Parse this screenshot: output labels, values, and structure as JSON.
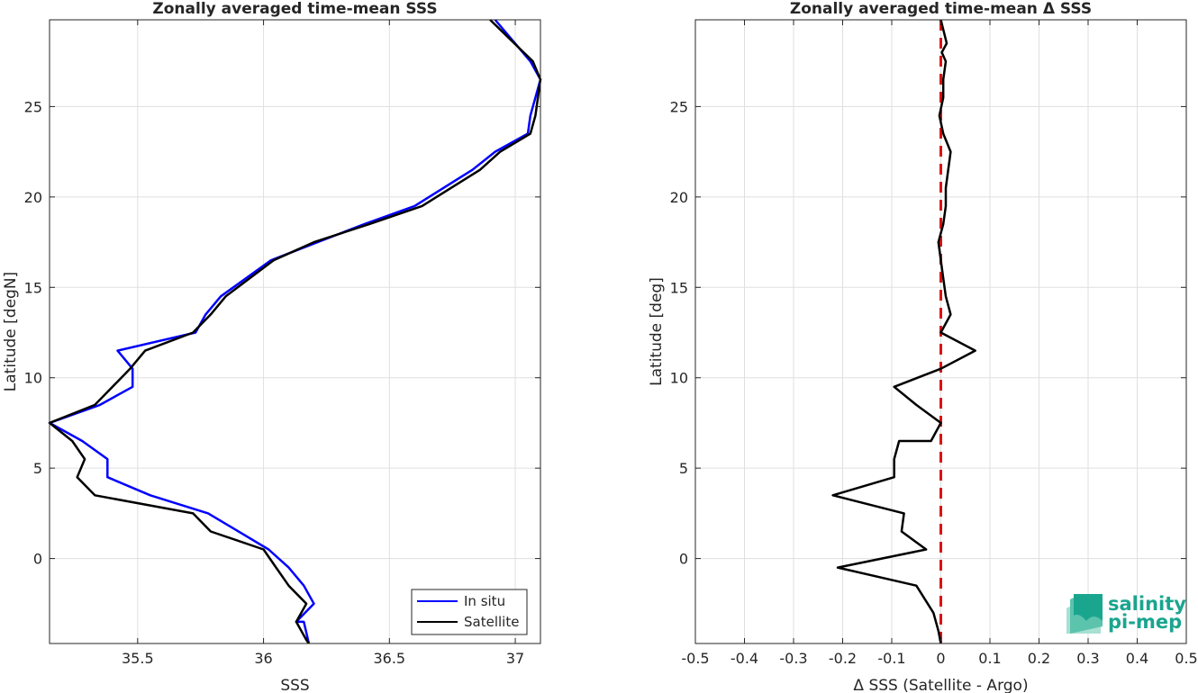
{
  "chart_data": [
    {
      "type": "line",
      "title": "Zonally averaged time-mean SSS",
      "xlabel": "SSS",
      "ylabel": "Latitude [degN]",
      "xlim": [
        35.15,
        37.1
      ],
      "ylim": [
        -4.7,
        29.8
      ],
      "xticks": [
        35.5,
        36,
        36.5,
        37
      ],
      "yticks": [
        0,
        5,
        10,
        15,
        20,
        25
      ],
      "grid": true,
      "legend": {
        "placement": "bottom-right",
        "entries": [
          "In situ",
          "Satellite"
        ]
      },
      "series": [
        {
          "name": "In situ",
          "color": "#0000ff",
          "x": [
            36.18,
            36.16,
            36.13,
            36.2,
            36.16,
            36.1,
            36.02,
            35.78,
            35.55,
            35.38,
            35.38,
            35.28,
            35.15,
            35.35,
            35.48,
            35.48,
            35.42,
            35.73,
            35.77,
            35.83,
            36.03,
            36.4,
            36.6,
            36.83,
            36.92,
            37.05,
            37.06,
            37.1,
            37.06,
            36.92
          ],
          "y": [
            -4.7,
            -3.5,
            -3.5,
            -2.5,
            -1.5,
            -0.5,
            0.5,
            2.5,
            3.5,
            4.5,
            5.5,
            6.5,
            7.5,
            8.5,
            9.5,
            10.5,
            11.5,
            12.5,
            13.5,
            14.5,
            16.5,
            18.5,
            19.5,
            21.5,
            22.5,
            23.5,
            24.5,
            26.5,
            27.5,
            29.8
          ]
        },
        {
          "name": "Satellite",
          "color": "#000000",
          "x": [
            36.18,
            36.17,
            36.13,
            36.17,
            36.1,
            36.05,
            36.0,
            35.79,
            35.72,
            35.33,
            35.26,
            35.29,
            35.24,
            35.15,
            35.33,
            35.4,
            35.47,
            35.53,
            35.72,
            35.79,
            35.85,
            36.04,
            36.2,
            36.42,
            36.63,
            36.86,
            36.94,
            37.06,
            37.08,
            37.1,
            37.07,
            36.9
          ],
          "y": [
            -4.7,
            -4.5,
            -3.5,
            -2.5,
            -1.5,
            -0.5,
            0.5,
            1.5,
            2.5,
            3.5,
            4.5,
            5.5,
            6.5,
            7.5,
            8.5,
            9.5,
            10.5,
            11.5,
            12.5,
            13.5,
            14.5,
            16.5,
            17.5,
            18.5,
            19.5,
            21.5,
            22.5,
            23.5,
            24.5,
            26.5,
            27.5,
            29.8
          ]
        }
      ]
    },
    {
      "type": "line",
      "title": "Zonally averaged time-mean Δ SSS",
      "xlabel": "Δ SSS (Satellite - Argo)",
      "ylabel": "Latitude [deg]",
      "xlim": [
        -0.5,
        0.5
      ],
      "ylim": [
        -4.7,
        29.8
      ],
      "xticks": [
        -0.5,
        -0.4,
        -0.3,
        -0.2,
        -0.1,
        0,
        0.1,
        0.2,
        0.3,
        0.4,
        0.5
      ],
      "yticks": [
        0,
        5,
        10,
        15,
        20,
        25
      ],
      "grid": true,
      "reference_line": {
        "x": 0,
        "color": "#e01010",
        "style": "dashed"
      },
      "series": [
        {
          "name": "",
          "color": "#000000",
          "x": [
            0.0,
            -0.005,
            -0.015,
            -0.05,
            -0.21,
            -0.03,
            -0.08,
            -0.075,
            -0.22,
            -0.095,
            -0.095,
            -0.085,
            -0.02,
            0.0,
            -0.05,
            -0.095,
            0.0,
            0.07,
            0.0,
            0.02,
            0.01,
            0.005,
            0.0,
            -0.005,
            0.005,
            0.01,
            0.01,
            0.02,
            0.005,
            -0.003,
            0.005,
            0.005,
            0.01,
            0.002,
            0.012,
            0.0
          ],
          "y": [
            -4.7,
            -4.0,
            -3.0,
            -1.5,
            -0.5,
            0.5,
            1.5,
            2.5,
            3.5,
            4.5,
            5.5,
            6.5,
            6.5,
            7.5,
            8.5,
            9.5,
            10.5,
            11.5,
            12.5,
            13.5,
            14.5,
            15.5,
            16.5,
            17.5,
            18.5,
            19.5,
            20.5,
            22.5,
            23.5,
            24.5,
            25.5,
            26.5,
            27.5,
            28.0,
            28.5,
            29.8
          ]
        }
      ]
    }
  ],
  "logo": {
    "line1": "salinity",
    "line2": "pi-mep",
    "color": "#1aa58f"
  }
}
